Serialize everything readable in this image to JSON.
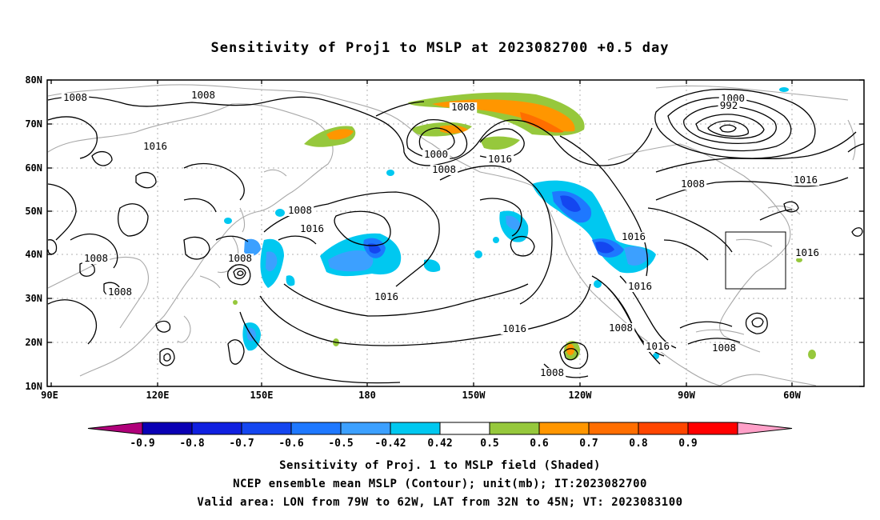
{
  "title": "Sensitivity of Proj1 to MSLP at 2023082700 +0.5 day",
  "axes": {
    "x_ticks": [
      "90E",
      "120E",
      "150E",
      "180",
      "150W",
      "120W",
      "90W",
      "60W"
    ],
    "y_ticks": [
      "80N",
      "70N",
      "60N",
      "50N",
      "40N",
      "30N",
      "20N",
      "10N"
    ]
  },
  "colorbar": {
    "labels": [
      "-0.9",
      "-0.8",
      "-0.7",
      "-0.6",
      "-0.5",
      "-0.42",
      "0.42",
      "0.5",
      "0.6",
      "0.7",
      "0.8",
      "0.9"
    ],
    "colors": [
      "#b0007a",
      "#0a00b4",
      "#1020e0",
      "#1446f0",
      "#1e78ff",
      "#3ca0ff",
      "#00c8f0",
      "#ffffff",
      "#96c83c",
      "#ff9600",
      "#ff6e00",
      "#ff4600",
      "#ff0000",
      "#ffa0c8"
    ]
  },
  "contour_labels": [
    {
      "text": "1008"
    },
    {
      "text": "1008"
    },
    {
      "text": "1016"
    },
    {
      "text": "1008"
    },
    {
      "text": "1008"
    },
    {
      "text": "1016"
    },
    {
      "text": "1008"
    },
    {
      "text": "1008"
    },
    {
      "text": "1000"
    },
    {
      "text": "1008"
    },
    {
      "text": "1016"
    },
    {
      "text": "1016"
    },
    {
      "text": "1016"
    },
    {
      "text": "1016"
    },
    {
      "text": "1016"
    },
    {
      "text": "1008"
    },
    {
      "text": "1016"
    },
    {
      "text": "1008"
    },
    {
      "text": "1008"
    },
    {
      "text": "1000"
    },
    {
      "text": "992"
    },
    {
      "text": "1008"
    },
    {
      "text": "1016"
    },
    {
      "text": "1016"
    },
    {
      "text": "1008"
    }
  ],
  "captions": [
    "Sensitivity of Proj. 1 to MSLP field (Shaded)",
    "NCEP ensemble mean MSLP (Contour); unit(mb); IT:2023082700",
    "Valid area: LON from 79W to 62W, LAT from 32N to 45N; VT: 2023083100"
  ]
}
